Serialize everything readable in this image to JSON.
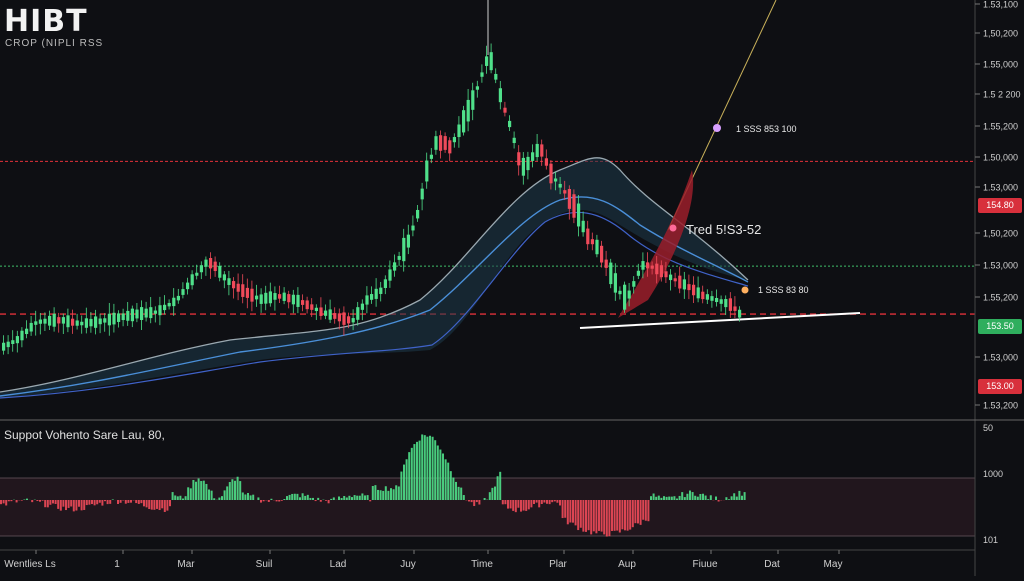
{
  "header": {
    "title": "HIBT",
    "subtitle": "CROP (NIPLI RSS"
  },
  "indicator_label": "Suppot Vohento Sare Lau, 80,",
  "price_tags": {
    "upper_red": "154.80",
    "green": "153.50",
    "lower_red": "153.00"
  },
  "annotations": {
    "top": "1 SSS 853 100",
    "middle": "Tred 5!S3-52",
    "lower": "1 SSS 83 80"
  },
  "colors": {
    "background": "#0e0f13",
    "bull": "#4fe08a",
    "bear": "#f04a5a",
    "support_line": "#ffffff",
    "red_level": "#e0303a",
    "green_level": "#3fbf6a",
    "band_fill": "#1e3a4a",
    "band_line_blue": "#4a8fd8",
    "band_line_gray": "#9aa8b0",
    "trend_line": "#c9b15a"
  },
  "chart_data": {
    "type": "candlestick",
    "title": "HIBT",
    "x_labels": [
      "Wentlies Ls",
      "1",
      "Mar",
      "Suil",
      "Lad",
      "Juy",
      "Time",
      "Plar",
      "Aup",
      "Fiuue",
      "Dat",
      "May"
    ],
    "y_tick_labels": [
      "1.53,100",
      "1,50,200",
      "1.55,000",
      "1.5 2 200",
      "1.55,200",
      "1.50,000",
      "1.53,000",
      "1,50,200",
      "1.53,000",
      "1.55,200",
      "1.53,000",
      "1.53,200"
    ],
    "indicator_tick_labels": [
      "50",
      "1000",
      "101"
    ],
    "y_range": [
      151.9,
      156.6
    ],
    "levels": {
      "upper_red": 154.75,
      "green": 153.55,
      "lower_red": 153.0
    },
    "support_line": [
      [
        0,
        153.55
      ],
      [
        1,
        153.75
      ]
    ],
    "legend": "none",
    "grid": false
  }
}
